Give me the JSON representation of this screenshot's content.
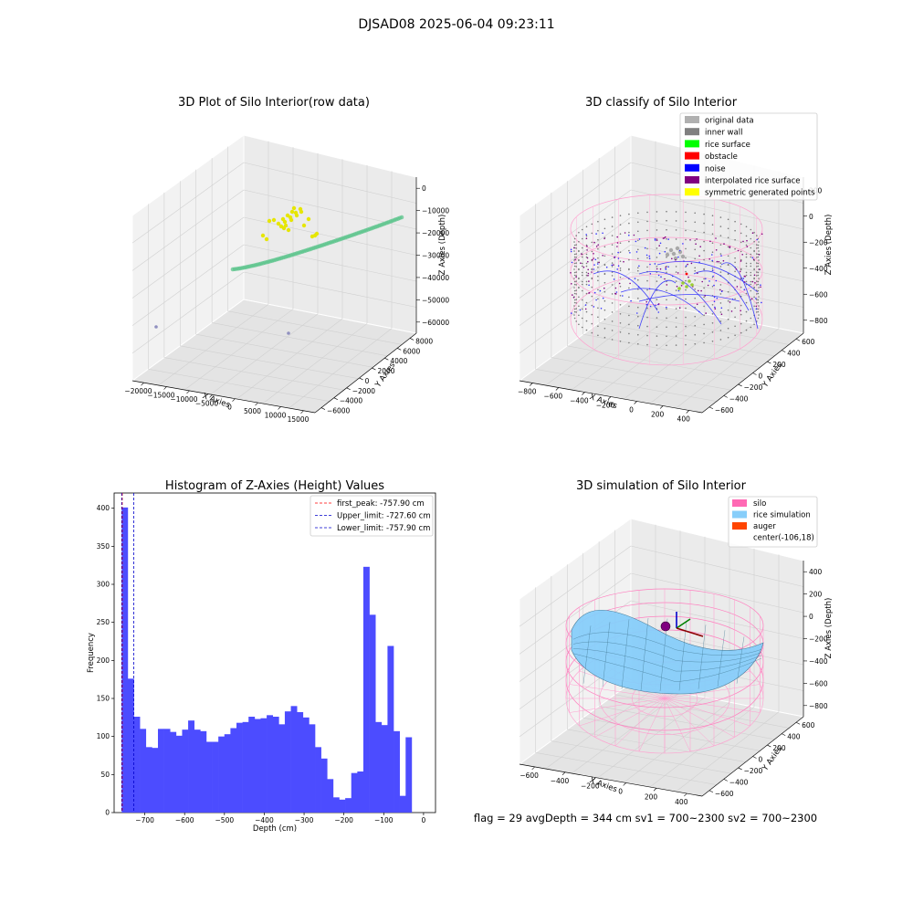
{
  "suptitle": "DJSAD08 2025-06-04 09:23:11",
  "status_line": "flag = 29  avgDepth = 344 cm  sv1 = 700~2300  sv2 = 700~2300",
  "colors": {
    "hist": "#4c4cff",
    "first_peak": "#ff0000",
    "limits": "#0000cc",
    "silo": "#ff69b4",
    "rice": "#87cefa",
    "auger": "#ff4500"
  },
  "chart_data": [
    {
      "type": "scatter3d",
      "title": "3D Plot of Silo Interior(row data)",
      "xlabel": "X Axies",
      "ylabel": "Y Axies",
      "zlabel": "Z Axies (Depth)",
      "x_ticks": [
        "−20000",
        "−15000",
        "−10000",
        "−5000",
        "0",
        "5000",
        "10000",
        "15000"
      ],
      "y_ticks": [
        "−6000",
        "−4000",
        "−2000",
        "0",
        "2000",
        "4000",
        "6000",
        "8000"
      ],
      "z_ticks": [
        "−60000",
        "−50000",
        "−40000",
        "−30000",
        "−20000",
        "−10000",
        "0"
      ],
      "xlim": [
        -22000,
        15000
      ],
      "ylim": [
        -6000,
        9000
      ],
      "zlim": [
        -65000,
        3000
      ]
    },
    {
      "type": "scatter3d",
      "title": "3D classify of Silo Interior",
      "xlabel": "X Axies",
      "ylabel": "Y Axies",
      "zlabel": "Z Axies (Depth)",
      "x_ticks": [
        "−800",
        "−600",
        "−400",
        "−200",
        "0",
        "200",
        "400"
      ],
      "y_ticks": [
        "−600",
        "−400",
        "−200",
        "0",
        "200",
        "400",
        "600"
      ],
      "z_ticks": [
        "−800",
        "−600",
        "−400",
        "−200",
        "0",
        "200"
      ],
      "legend": [
        {
          "label": "original data",
          "color": "#b0b0b0"
        },
        {
          "label": "inner wall",
          "color": "#808080"
        },
        {
          "label": "rice surface",
          "color": "#00ff00"
        },
        {
          "label": "obstacle",
          "color": "#ff0000"
        },
        {
          "label": "noise",
          "color": "#0000ff"
        },
        {
          "label": "interpolated rice surface",
          "color": "#800080"
        },
        {
          "label": "symmetric generated points",
          "color": "#ffff00"
        }
      ]
    },
    {
      "type": "bar",
      "title": "Histogram of Z-Axies (Height) Values",
      "xlabel": "Depth (cm)",
      "ylabel": "Frequency",
      "xlim": [
        -777,
        30
      ],
      "ylim": [
        0,
        420
      ],
      "x_ticks": [
        -700,
        -600,
        -500,
        -400,
        -300,
        -200,
        -100,
        0
      ],
      "x_tick_labels": [
        "−700",
        "−600",
        "−500",
        "−400",
        "−300",
        "−200",
        "−100",
        "0"
      ],
      "y_ticks": [
        0,
        50,
        100,
        150,
        200,
        250,
        300,
        350,
        400
      ],
      "y_tick_labels": [
        "0",
        "50",
        "100",
        "150",
        "200",
        "250",
        "300",
        "350",
        "400"
      ],
      "bin_start": -758,
      "bin_width": 15.17,
      "values": [
        401,
        176,
        126,
        110,
        86,
        85,
        110,
        110,
        106,
        101,
        109,
        121,
        109,
        107,
        93,
        93,
        100,
        103,
        111,
        118,
        119,
        126,
        123,
        124,
        128,
        126,
        116,
        133,
        140,
        132,
        125,
        116,
        86,
        71,
        44,
        20,
        17,
        19,
        52,
        54,
        323,
        260,
        119,
        115,
        219,
        107,
        22,
        99
      ],
      "lines": [
        {
          "label": "first_peak: -757.90 cm",
          "x": -757.9,
          "color": "#ff0000"
        },
        {
          "label": "Upper_limit: -727.60 cm",
          "x": -727.6,
          "color": "#0000cc"
        },
        {
          "label": "Lower_limit: -757.90 cm",
          "x": -757.9,
          "color": "#0000cc"
        }
      ]
    },
    {
      "type": "surface3d",
      "title": "3D simulation of Silo Interior",
      "xlabel": "X Axies",
      "ylabel": "Y Axies",
      "zlabel": "Z Axies (Depth)",
      "x_ticks": [
        "−600",
        "−400",
        "−200",
        "0",
        "200",
        "400"
      ],
      "y_ticks": [
        "−600",
        "−400",
        "−200",
        "0",
        "200",
        "400",
        "600"
      ],
      "z_ticks": [
        "−800",
        "−600",
        "−400",
        "−200",
        "0",
        "200",
        "400"
      ],
      "legend": [
        {
          "label": "silo",
          "color": "#ff69b4"
        },
        {
          "label": "rice simulation",
          "color": "#87cefa"
        },
        {
          "label": "auger",
          "color": "#ff4500"
        },
        {
          "label": "center(-106,18)",
          "color": "none"
        }
      ]
    }
  ]
}
